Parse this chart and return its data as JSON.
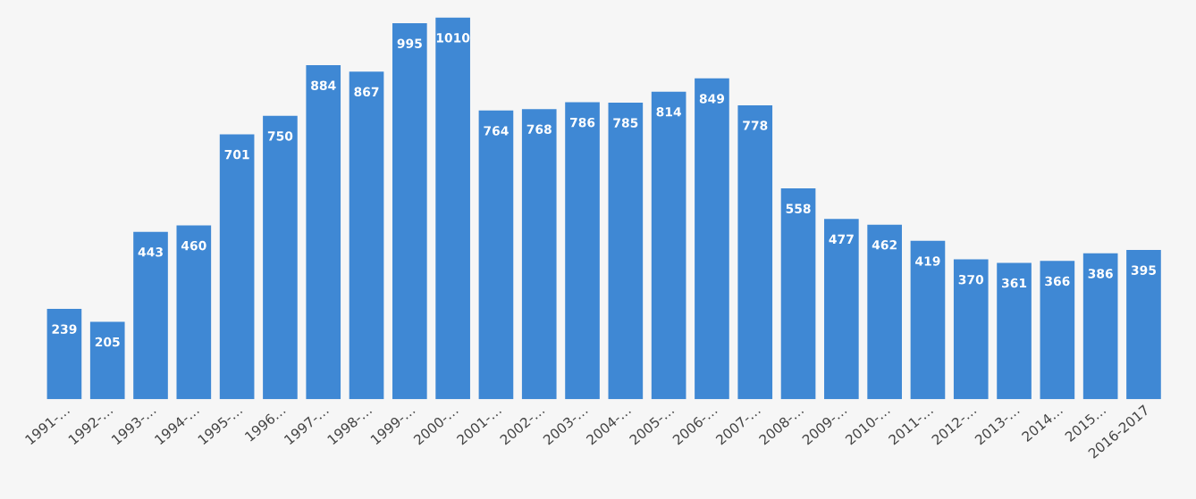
{
  "chart_data": {
    "type": "bar",
    "categories": [
      "1991-…",
      "1992-…",
      "1993-…",
      "1994-…",
      "1995-…",
      "1996…",
      "1997-…",
      "1998-…",
      "1999-…",
      "2000-…",
      "2001-…",
      "2002-…",
      "2003-…",
      "2004-…",
      "2005-…",
      "2006-…",
      "2007-…",
      "2008-…",
      "2009-…",
      "2010-…",
      "2011-…",
      "2012-…",
      "2013-…",
      "2014…",
      "2015…",
      "2016-2017"
    ],
    "values": [
      239,
      205,
      443,
      460,
      701,
      750,
      884,
      867,
      995,
      1010,
      764,
      768,
      786,
      785,
      814,
      849,
      778,
      558,
      477,
      462,
      419,
      370,
      361,
      366,
      386,
      395
    ],
    "color": "#3f88d4",
    "data_labels": true,
    "grid": false,
    "legend": false
  }
}
